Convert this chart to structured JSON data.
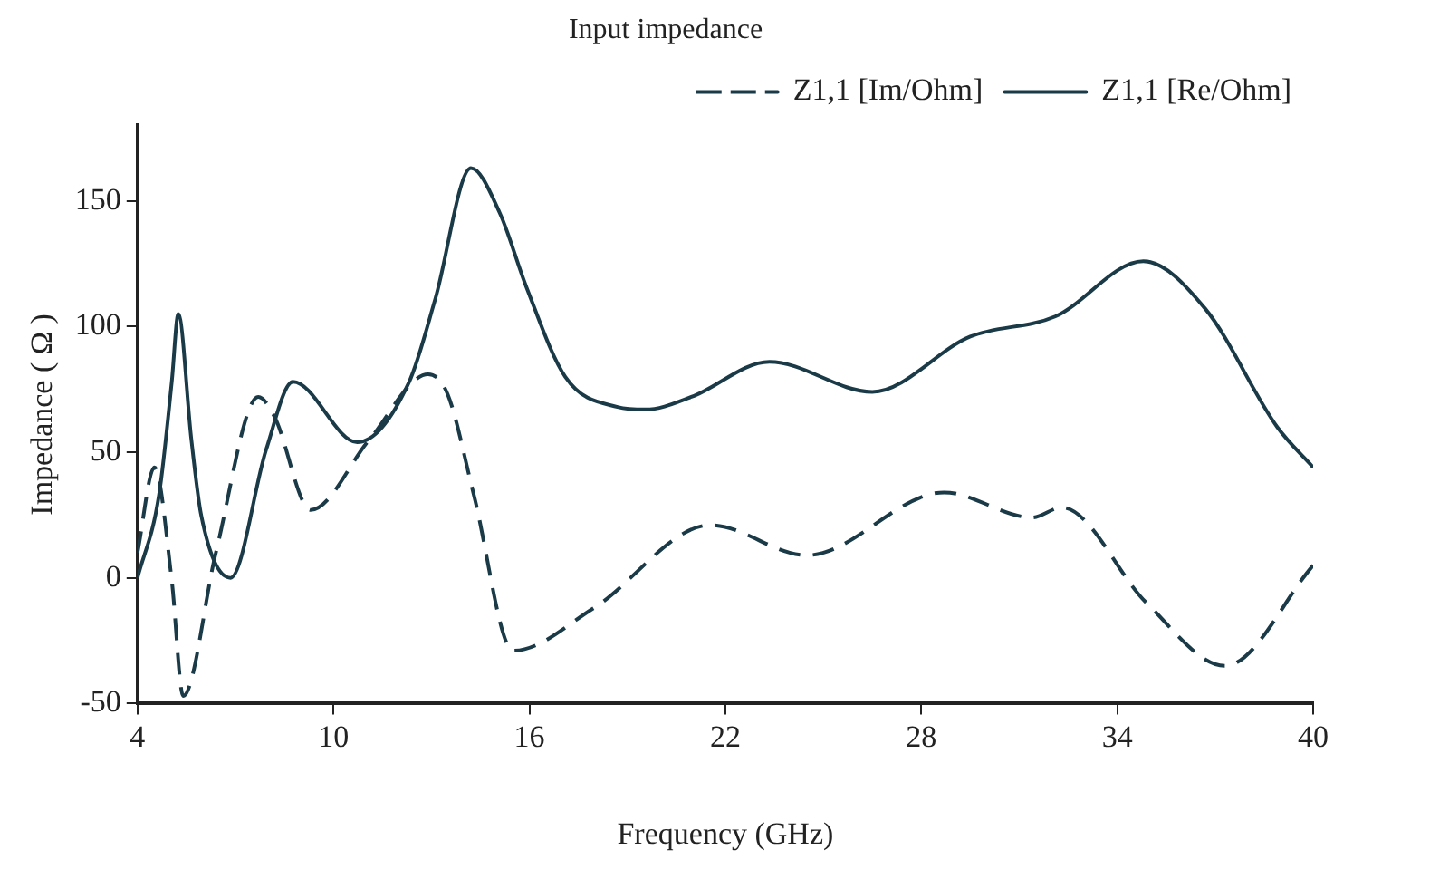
{
  "chart_data": {
    "type": "line",
    "title": "Input impedance",
    "xlabel": "Frequency (GHz)",
    "ylabel": "Impedance ( Ω )",
    "xlim": [
      4,
      40
    ],
    "xticks": [
      4,
      10,
      16,
      22,
      28,
      34,
      40
    ],
    "ylim": [
      -50,
      180
    ],
    "yticks": [
      -50,
      0,
      50,
      100,
      150
    ],
    "grid": false,
    "legend": "top right",
    "marker": "none",
    "series": [
      {
        "name": "Z1,1 [Im/Ohm]",
        "color": "#1b3a48",
        "line_style": "dashed",
        "x": [
          4,
          4.52,
          5.05,
          5.4,
          6.4,
          7.7,
          8.2,
          9.3,
          11.1,
          12.9,
          13.5,
          14.3,
          15.5,
          17.97,
          21.55,
          24.5,
          28.7,
          31.4,
          32.3,
          34.9,
          37.3,
          40
        ],
        "values": [
          10,
          44,
          -1,
          -47,
          10,
          72,
          64,
          27,
          55,
          81,
          73,
          33,
          -29,
          -12,
          21,
          9,
          34,
          24,
          28,
          -10,
          -35,
          5
        ]
      },
      {
        "name": "Z1,1 [Re/Ohm]",
        "color": "#1b3a48",
        "line_style": "solid",
        "x": [
          4,
          4.66,
          5.05,
          5.25,
          5.65,
          5.95,
          6.85,
          7.94,
          8.76,
          10.73,
          12.32,
          13.12,
          14.21,
          15.1,
          15.9,
          17.1,
          18.7,
          19.56,
          20.96,
          23.35,
          26.5,
          29.5,
          32.1,
          34.8,
          36.7,
          38.9,
          40
        ],
        "values": [
          0,
          33,
          78,
          105,
          55,
          25,
          0,
          51,
          78,
          54,
          78,
          111,
          163,
          145,
          116,
          80,
          68,
          67,
          72,
          86,
          74,
          96,
          104,
          126,
          107,
          60,
          44
        ]
      }
    ]
  }
}
